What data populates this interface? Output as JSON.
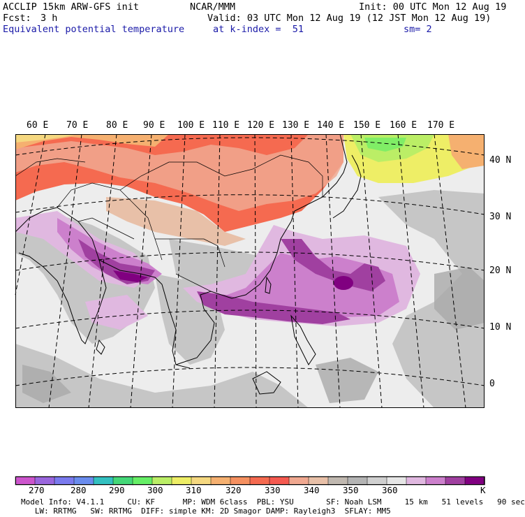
{
  "header": {
    "model_title": "ACCLIP 15km ARW-GFS init",
    "org": "NCAR/MMM",
    "init": "Init: 00 UTC Mon 12 Aug 19",
    "fcst_label": "Fcst:",
    "fcst_value": "3 h",
    "valid": "Valid: 03 UTC Mon 12 Aug 19 (12 JST Mon 12 Aug 19)",
    "field_name": "Equivalent potential temperature",
    "level": "at k-index =  51",
    "smoothing": "sm= 2"
  },
  "map": {
    "lon_labels": [
      "60 E",
      "70 E",
      "80 E",
      "90 E",
      "100 E",
      "110 E",
      "120 E",
      "130 E",
      "140 E",
      "150 E",
      "160 E",
      "170 E"
    ],
    "lat_labels": [
      "40 N",
      "30 N",
      "20 N",
      "10 N",
      "0"
    ],
    "colors": {
      "ocean_background": "#ededed",
      "land_gray": "#c6c6c6",
      "dark_gray": "#a9a9a9",
      "coastline": "#000000",
      "gridline": "#000000"
    }
  },
  "colorbar": {
    "unit": "K",
    "tick_labels": [
      "270",
      "280",
      "290",
      "300",
      "310",
      "320",
      "330",
      "340",
      "350",
      "360"
    ],
    "colors": [
      "#cc55cc",
      "#9a66dd",
      "#7a7aee",
      "#6a8cee",
      "#33c0c0",
      "#44d878",
      "#66ee66",
      "#bbee66",
      "#eeee66",
      "#f5d880",
      "#f5b070",
      "#f59060",
      "#f56a50",
      "#f55a50",
      "#f0a890",
      "#e8c0a8",
      "#c0b8b0",
      "#b4b4b4",
      "#d0d0d0",
      "#e6e6e6",
      "#e0b8e0",
      "#cc80cc",
      "#a040a0",
      "#800080"
    ]
  },
  "footer": {
    "line1": "Model Info: V4.1.1     CU: KF      MP: WDM 6class  PBL: YSU       SF: Noah LSM     15 km   51 levels   90 sec",
    "line2": "   LW: RRTMG   SW: RRTMG  DIFF: simple KM: 2D Smagor DAMP: Rayleigh3  SFLAY: MM5"
  }
}
